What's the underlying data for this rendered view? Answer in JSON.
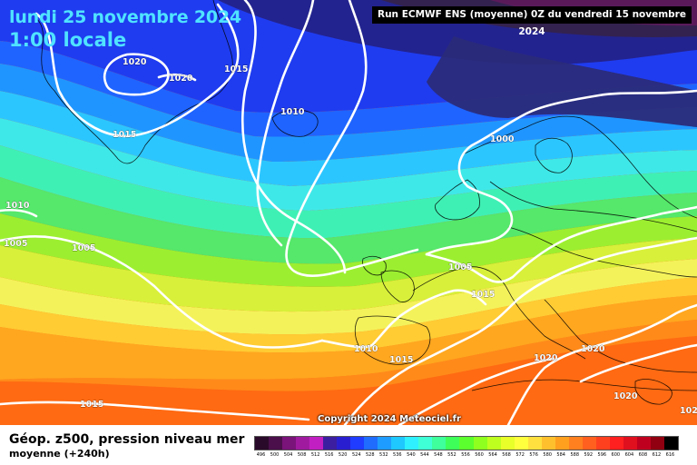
{
  "header": {
    "date_line": "lundi 25 novembre 2024",
    "time_line": "1:00 locale",
    "run_info": "Run ECMWF ENS (moyenne) 0Z du vendredi 15 novembre 2024"
  },
  "copyright": "Copyright 2024 Meteociel.fr",
  "footer": {
    "title": "Géop. z500, pression niveau mer",
    "subtitle": "moyenne   (+240h)"
  },
  "isobar_labels": [
    "1020",
    "1020",
    "1015",
    "1015",
    "1010",
    "1010",
    "1005",
    "1005",
    "1000",
    "1005",
    "1015",
    "1010",
    "1015",
    "1020",
    "1020",
    "1020",
    "1015",
    "102"
  ],
  "legend": {
    "labels": [
      "496",
      "500",
      "504",
      "508",
      "512",
      "516",
      "520",
      "524",
      "528",
      "532",
      "536",
      "540",
      "544",
      "548",
      "552",
      "556",
      "560",
      "564",
      "568",
      "572",
      "576",
      "580",
      "584",
      "588",
      "592",
      "596",
      "600",
      "604",
      "608",
      "612",
      "616"
    ],
    "colors": [
      "#2a0a2a",
      "#4b0f4b",
      "#7a137a",
      "#a01aa0",
      "#c21fc2",
      "#3c1fa0",
      "#2a1fd0",
      "#1f3cff",
      "#1f6cff",
      "#1f9cff",
      "#1fc8ff",
      "#2ef0ff",
      "#3effd6",
      "#3eff9c",
      "#3eff5a",
      "#5cff2e",
      "#8fff1f",
      "#bfff1f",
      "#e8ff2a",
      "#ffff3e",
      "#ffe03e",
      "#ffc02e",
      "#ffa01f",
      "#ff801f",
      "#ff601f",
      "#ff401f",
      "#ff201f",
      "#e0101f",
      "#c0001f",
      "#900010",
      "#000000"
    ]
  },
  "colors": {
    "title_cyan": "#4fe3ff",
    "isobar_white": "#ffffff",
    "run_box_bg": "#000000"
  }
}
